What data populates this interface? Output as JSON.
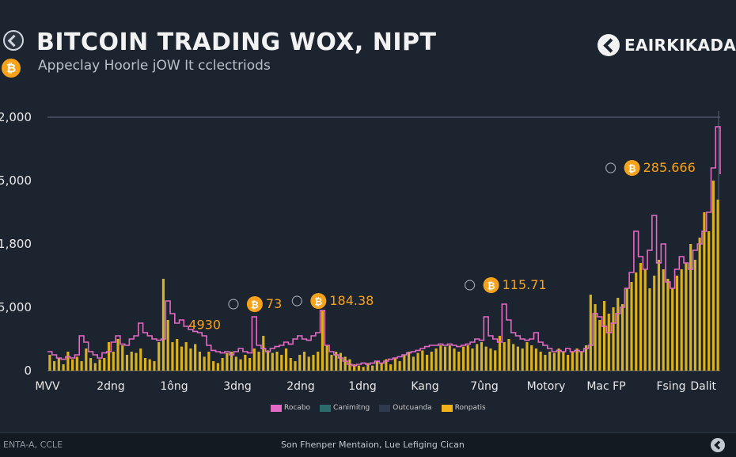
{
  "header": {
    "title": "BITCOIN TRADING WOX, NIPT",
    "subtitle": "Appeclay Hoorle jOW It cclectriods",
    "brand": "EAIRKIKADA",
    "coin_glyph": "₿"
  },
  "footer": {
    "left_text": "ENTA-A, CCLE",
    "center_text": "Son Fhenper Mentaion, Lue Lefiging Cican"
  },
  "legend": [
    {
      "label": "Rocabo",
      "color": "#e36ac4"
    },
    {
      "label": "Canimitng",
      "color": "#2a6b6b"
    },
    {
      "label": "Outcuanda",
      "color": "#2e3b4e"
    },
    {
      "label": "Ronpatis",
      "color": "#f2b31a"
    }
  ],
  "colors": {
    "background": "#1c2430",
    "bar": "#d9b21d",
    "line": "#e36ac4",
    "coin": "#f7a21b",
    "annotation": "#f7a21b"
  },
  "chart_data": {
    "type": "bar",
    "title": "BITCOIN TRADING WOX, NIPT",
    "y_tick_labels": [
      "0",
      "5,000",
      "1,800",
      "5,000",
      ",2,000"
    ],
    "y_ticks": [
      0,
      1,
      2,
      3,
      4
    ],
    "ylim": [
      0,
      4
    ],
    "x_tick_labels": [
      "MVV",
      "2dng",
      "1ông",
      "3dng",
      "2dng",
      "1dng",
      "Kang",
      "7ûng",
      "Motory",
      "Mac FP",
      "Fsing",
      "Dalit"
    ],
    "grid": false,
    "legend_position": "bottom",
    "annotations": [
      {
        "label": "4930",
        "x_index": 30,
        "y": 0.72,
        "coin": false
      },
      {
        "label": "73",
        "x_index": 47,
        "y": 1.05,
        "coin": true
      },
      {
        "label": "184.38",
        "x_index": 61,
        "y": 1.1,
        "coin": true
      },
      {
        "label": "115.71",
        "x_index": 99,
        "y": 1.35,
        "coin": true
      },
      {
        "label": "285.666",
        "x_index": 130,
        "y": 3.2,
        "coin": true
      }
    ],
    "series": [
      {
        "name": "Ronpatis",
        "kind": "bar",
        "values": [
          0.25,
          0.15,
          0.2,
          0.1,
          0.3,
          0.18,
          0.22,
          0.15,
          0.35,
          0.2,
          0.12,
          0.18,
          0.2,
          0.45,
          0.3,
          0.5,
          0.4,
          0.25,
          0.3,
          0.28,
          0.35,
          0.2,
          0.18,
          0.15,
          0.45,
          1.45,
          0.8,
          0.45,
          0.5,
          0.38,
          0.45,
          0.35,
          0.42,
          0.3,
          0.22,
          0.3,
          0.15,
          0.12,
          0.2,
          0.28,
          0.3,
          0.22,
          0.18,
          0.25,
          0.2,
          0.35,
          0.3,
          0.55,
          0.32,
          0.28,
          0.3,
          0.25,
          0.35,
          0.2,
          0.15,
          0.25,
          0.3,
          0.22,
          0.25,
          0.3,
          0.95,
          0.4,
          0.25,
          0.3,
          0.28,
          0.22,
          0.18,
          0.1,
          0.08,
          0.06,
          0.12,
          0.08,
          0.15,
          0.12,
          0.18,
          0.1,
          0.2,
          0.15,
          0.25,
          0.3,
          0.22,
          0.28,
          0.32,
          0.25,
          0.3,
          0.35,
          0.4,
          0.38,
          0.4,
          0.35,
          0.3,
          0.38,
          0.4,
          0.35,
          0.42,
          0.45,
          0.38,
          0.35,
          0.32,
          0.55,
          0.45,
          0.5,
          0.42,
          0.38,
          0.35,
          0.45,
          0.4,
          0.35,
          0.3,
          0.25,
          0.3,
          0.28,
          0.35,
          0.3,
          0.25,
          0.3,
          0.35,
          0.3,
          0.4,
          1.2,
          1.05,
          0.8,
          1.1,
          0.9,
          1.0,
          1.15,
          1.05,
          1.3,
          1.4,
          1.55,
          1.7,
          1.6,
          1.3,
          1.5,
          1.75,
          1.6,
          1.45,
          1.3,
          1.5,
          1.6,
          1.7,
          2.0,
          1.75,
          2.1,
          2.5,
          2.2,
          3.0,
          2.7
        ],
        "color": "#d9b21d"
      },
      {
        "name": "Rocabo",
        "kind": "line",
        "values": [
          0.3,
          0.25,
          0.2,
          0.18,
          0.22,
          0.2,
          0.25,
          0.55,
          0.45,
          0.3,
          0.25,
          0.2,
          0.28,
          0.3,
          0.45,
          0.55,
          0.42,
          0.4,
          0.5,
          0.55,
          0.75,
          0.6,
          0.55,
          0.5,
          0.48,
          0.5,
          1.1,
          0.9,
          0.75,
          0.8,
          0.7,
          0.65,
          0.62,
          0.6,
          0.55,
          0.4,
          0.32,
          0.3,
          0.28,
          0.3,
          0.25,
          0.3,
          0.35,
          0.3,
          0.28,
          0.85,
          0.4,
          0.35,
          0.3,
          0.35,
          0.38,
          0.4,
          0.45,
          0.42,
          0.5,
          0.55,
          0.5,
          0.48,
          0.55,
          0.6,
          0.95,
          0.4,
          0.3,
          0.25,
          0.2,
          0.15,
          0.1,
          0.08,
          0.1,
          0.12,
          0.1,
          0.12,
          0.15,
          0.12,
          0.15,
          0.18,
          0.2,
          0.22,
          0.25,
          0.28,
          0.3,
          0.32,
          0.35,
          0.38,
          0.4,
          0.4,
          0.42,
          0.4,
          0.42,
          0.4,
          0.38,
          0.4,
          0.42,
          0.45,
          0.5,
          0.48,
          0.85,
          0.55,
          0.5,
          0.45,
          1.05,
          0.8,
          0.6,
          0.55,
          0.5,
          0.48,
          0.5,
          0.6,
          0.45,
          0.4,
          0.35,
          0.3,
          0.32,
          0.3,
          0.35,
          0.3,
          0.32,
          0.3,
          0.35,
          0.4,
          0.9,
          0.85,
          0.7,
          0.6,
          0.75,
          0.9,
          1.0,
          1.3,
          1.55,
          2.2,
          1.8,
          1.6,
          1.9,
          2.45,
          1.7,
          2.0,
          1.4,
          1.3,
          1.6,
          1.8,
          1.7,
          1.6,
          1.9,
          2.0,
          2.2,
          2.5,
          3.2,
          3.85,
          3.1
        ],
        "color": "#e36ac4"
      }
    ]
  }
}
